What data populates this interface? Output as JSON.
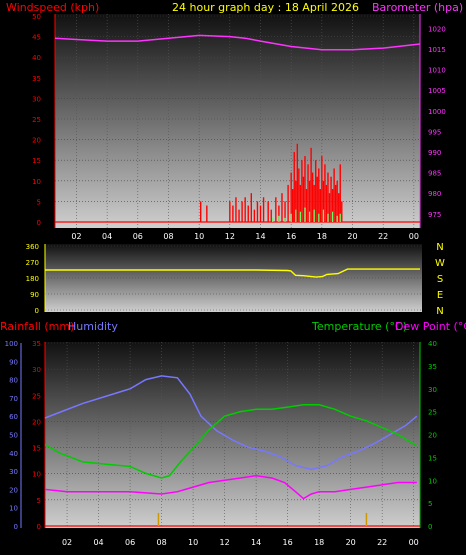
{
  "header": {
    "left_title": "Windspeed (kph)",
    "center_title": "24 hour graph day : 18 April 2026",
    "right_title": "Barometer (hpa)"
  },
  "x_ticks": [
    "02",
    "04",
    "06",
    "08",
    "10",
    "12",
    "14",
    "16",
    "18",
    "20",
    "22",
    "00"
  ],
  "colors": {
    "wind": "#ff0000",
    "gust": "#ff0000",
    "barometer": "#ff33ff",
    "direction": "#ffff00",
    "temperature": "#00cc00",
    "dewpoint": "#ff00ff",
    "humidity": "#7777ff",
    "rainfall": "#cc9900",
    "panel_bg_top": "#1a1a1a",
    "panel_bg_bottom": "#c8c8c8"
  },
  "chart_data": [
    {
      "type": "line",
      "name": "windspeed-barometer",
      "x_range": [
        0.6,
        24.4
      ],
      "left_axis": {
        "label": "Windspeed (kph)",
        "range": [
          0,
          50
        ],
        "ticks": [
          0,
          5,
          10,
          15,
          20,
          25,
          30,
          35,
          40,
          45,
          50
        ]
      },
      "right_axis": {
        "label": "Barometer (hpa)",
        "range": [
          973,
          1023
        ],
        "ticks": [
          975,
          980,
          985,
          990,
          995,
          1000,
          1005,
          1010,
          1015,
          1020
        ]
      },
      "series": [
        {
          "name": "Barometer (hpa)",
          "x": [
            0.6,
            2,
            4,
            6,
            8,
            10,
            12,
            13,
            14,
            16,
            18,
            19,
            20,
            22,
            24.4
          ],
          "y": [
            1017.6,
            1017.3,
            1016.9,
            1016.9,
            1017.6,
            1018.3,
            1018.0,
            1017.6,
            1016.9,
            1015.6,
            1014.8,
            1014.8,
            1014.8,
            1015.2,
            1016.2
          ]
        }
      ],
      "gust_events": [
        [
          10.1,
          5
        ],
        [
          10.5,
          4
        ],
        [
          12.0,
          5
        ],
        [
          12.2,
          4
        ],
        [
          12.4,
          6
        ],
        [
          12.6,
          3
        ],
        [
          12.8,
          5
        ],
        [
          13.0,
          6
        ],
        [
          13.2,
          4
        ],
        [
          13.4,
          7
        ],
        [
          13.6,
          3
        ],
        [
          13.8,
          5
        ],
        [
          14.0,
          4
        ],
        [
          14.2,
          6
        ],
        [
          14.5,
          5
        ],
        [
          14.7,
          3
        ],
        [
          15.0,
          6
        ],
        [
          15.2,
          4
        ],
        [
          15.4,
          7
        ],
        [
          15.6,
          5
        ],
        [
          15.8,
          9
        ],
        [
          16.0,
          12
        ],
        [
          16.1,
          8
        ],
        [
          16.2,
          17
        ],
        [
          16.3,
          10
        ],
        [
          16.4,
          19
        ],
        [
          16.5,
          13
        ],
        [
          16.6,
          9
        ],
        [
          16.7,
          15
        ],
        [
          16.8,
          11
        ],
        [
          16.9,
          16
        ],
        [
          17.0,
          8
        ],
        [
          17.1,
          14
        ],
        [
          17.2,
          10
        ],
        [
          17.3,
          18
        ],
        [
          17.4,
          12
        ],
        [
          17.5,
          9
        ],
        [
          17.6,
          15
        ],
        [
          17.7,
          11
        ],
        [
          17.8,
          13
        ],
        [
          17.9,
          8
        ],
        [
          18.0,
          16
        ],
        [
          18.1,
          10
        ],
        [
          18.2,
          14
        ],
        [
          18.3,
          9
        ],
        [
          18.4,
          12
        ],
        [
          18.5,
          7
        ],
        [
          18.6,
          11
        ],
        [
          18.7,
          8
        ],
        [
          18.8,
          13
        ],
        [
          18.9,
          9
        ],
        [
          19.0,
          10
        ],
        [
          19.1,
          7
        ],
        [
          19.2,
          14
        ],
        [
          19.3,
          5
        ]
      ],
      "avg_wind_events": [
        [
          14.8,
          1
        ],
        [
          15.2,
          1.5
        ],
        [
          15.6,
          1
        ],
        [
          16.0,
          2
        ],
        [
          16.3,
          3
        ],
        [
          16.6,
          2.5
        ],
        [
          16.9,
          3.5
        ],
        [
          17.2,
          2.5
        ],
        [
          17.5,
          3
        ],
        [
          17.8,
          2
        ],
        [
          18.1,
          3
        ],
        [
          18.4,
          2
        ],
        [
          18.7,
          2.5
        ],
        [
          19.0,
          1.5
        ],
        [
          19.2,
          2
        ]
      ]
    },
    {
      "type": "line",
      "name": "wind-direction",
      "x_range": [
        0.6,
        24.4
      ],
      "left_axis": {
        "range": [
          0,
          360
        ],
        "ticks": [
          0,
          90,
          180,
          270,
          360
        ]
      },
      "right_axis": {
        "labels": [
          "N",
          "W",
          "S",
          "E",
          "N"
        ]
      },
      "series": [
        {
          "name": "Wind Direction",
          "x": [
            0.6,
            14,
            16,
            16.2,
            16.5,
            17.0,
            17.8,
            18.2,
            18.5,
            19.2,
            19.8,
            24.4
          ],
          "y": [
            225,
            225,
            222,
            220,
            195,
            193,
            185,
            188,
            200,
            205,
            230,
            230
          ]
        }
      ]
    },
    {
      "type": "line",
      "name": "rain-humidity-temperature",
      "x_range": [
        0.6,
        24.4
      ],
      "left_outer_axis": {
        "label": "Humidity",
        "range": [
          0,
          100
        ],
        "ticks": [
          0,
          10,
          20,
          30,
          40,
          50,
          60,
          70,
          80,
          90,
          100
        ]
      },
      "left_inner_axis": {
        "label": "Rainfall (mm)",
        "range": [
          0,
          35
        ],
        "ticks": [
          0,
          5,
          10,
          15,
          20,
          25,
          30,
          35
        ]
      },
      "right_axis": {
        "label": "Temperature (°C)",
        "range": [
          0,
          40
        ],
        "ticks": [
          0,
          5,
          10,
          15,
          20,
          25,
          30,
          35,
          40
        ]
      },
      "right_title_2": "Dew Point (°C)",
      "series": [
        {
          "name": "Humidity",
          "axis": "humidity",
          "x": [
            0.6,
            1.5,
            3,
            4.5,
            6,
            7,
            8,
            9,
            9.8,
            10.5,
            11.5,
            12.5,
            13.5,
            14.5,
            15.5,
            16.5,
            17.5,
            18.5,
            19.5,
            20.5,
            21.5,
            22.5,
            23.5,
            24.2
          ],
          "y": [
            59,
            62,
            67,
            71,
            75,
            80,
            82,
            81,
            72,
            60,
            52,
            47,
            43,
            41,
            38,
            33,
            31,
            33,
            38,
            41,
            45,
            50,
            55,
            60
          ]
        },
        {
          "name": "Temperature (°C)",
          "axis": "temperature",
          "x": [
            0.6,
            1.5,
            3,
            4.5,
            6,
            7,
            8,
            8.5,
            9.2,
            10,
            11,
            12,
            13,
            14,
            15,
            16,
            17,
            18,
            19,
            20,
            21,
            22,
            23,
            24.2
          ],
          "y": [
            17.8,
            16,
            14,
            13.5,
            13,
            11.5,
            10.5,
            11,
            14,
            17,
            21,
            24,
            25,
            25.5,
            25.5,
            26,
            26.5,
            26.5,
            25.5,
            24,
            23,
            21.5,
            20,
            17.5
          ]
        },
        {
          "name": "Dew Point (°C)",
          "axis": "temperature",
          "x": [
            0.6,
            2,
            4,
            6,
            8,
            9,
            10,
            11,
            12,
            13,
            14,
            15,
            15.8,
            16.5,
            17,
            17.5,
            18,
            19,
            20,
            21,
            22,
            23,
            24.2
          ],
          "y": [
            8,
            7.5,
            7.5,
            7.5,
            7,
            7.5,
            8.5,
            9.5,
            10,
            10.5,
            11,
            10.5,
            9.5,
            7.5,
            6,
            7,
            7.5,
            7.5,
            8,
            8.5,
            9,
            9.5,
            9.5
          ]
        }
      ],
      "rain_bars": [
        {
          "x": 7.8,
          "value": 2.5
        },
        {
          "x": 21.0,
          "value": 2.5
        }
      ]
    }
  ],
  "direction_labels": [
    "N",
    "W",
    "S",
    "E",
    "N"
  ],
  "legend": {
    "rainfall": "Rainfall (mm)",
    "humidity": "Humidity",
    "temperature": "Temperature (°C)",
    "dewpoint": "Dew Point (°C)"
  }
}
